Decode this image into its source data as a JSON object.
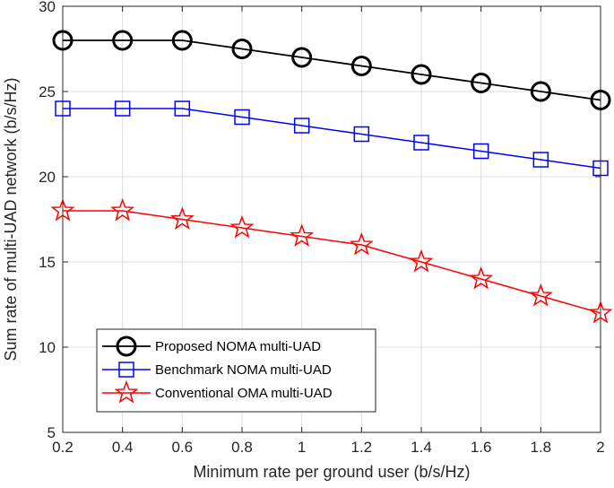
{
  "chart_data": {
    "type": "line",
    "title": "",
    "xlabel": "Minimum rate per ground user (b/s/Hz)",
    "ylabel": "Sum rate of multi-UAD network (b/s/Hz)",
    "xlim": [
      0.2,
      2
    ],
    "ylim": [
      5,
      30
    ],
    "xticks": [
      0.2,
      0.4,
      0.6,
      0.8,
      1,
      1.2,
      1.4,
      1.6,
      1.8,
      2
    ],
    "xtick_labels": [
      "0.2",
      "0.4",
      "0.6",
      "0.8",
      "1",
      "1.2",
      "1.4",
      "1.6",
      "1.8",
      "2"
    ],
    "yticks": [
      5,
      10,
      15,
      20,
      25,
      30
    ],
    "ytick_labels": [
      "5",
      "10",
      "15",
      "20",
      "25",
      "30"
    ],
    "grid": true,
    "legend_position": "bottom-left",
    "x": [
      0.2,
      0.4,
      0.6,
      0.8,
      1.0,
      1.2,
      1.4,
      1.6,
      1.8,
      2.0
    ],
    "series": [
      {
        "name": "Proposed NOMA multi-UAD",
        "color": "#000000",
        "marker": "circle",
        "values": [
          28,
          28,
          28,
          27.5,
          27,
          26.5,
          26,
          25.5,
          25,
          24.5
        ]
      },
      {
        "name": "Benchmark NOMA multi-UAD",
        "color": "#0000ff",
        "marker": "square",
        "values": [
          24,
          24,
          24,
          23.5,
          23,
          22.5,
          22,
          21.5,
          21,
          20.5
        ]
      },
      {
        "name": "Conventional OMA multi-UAD",
        "color": "#ff0000",
        "marker": "star",
        "values": [
          18,
          18,
          17.5,
          17,
          16.5,
          16,
          15,
          14,
          13,
          12
        ]
      }
    ]
  }
}
